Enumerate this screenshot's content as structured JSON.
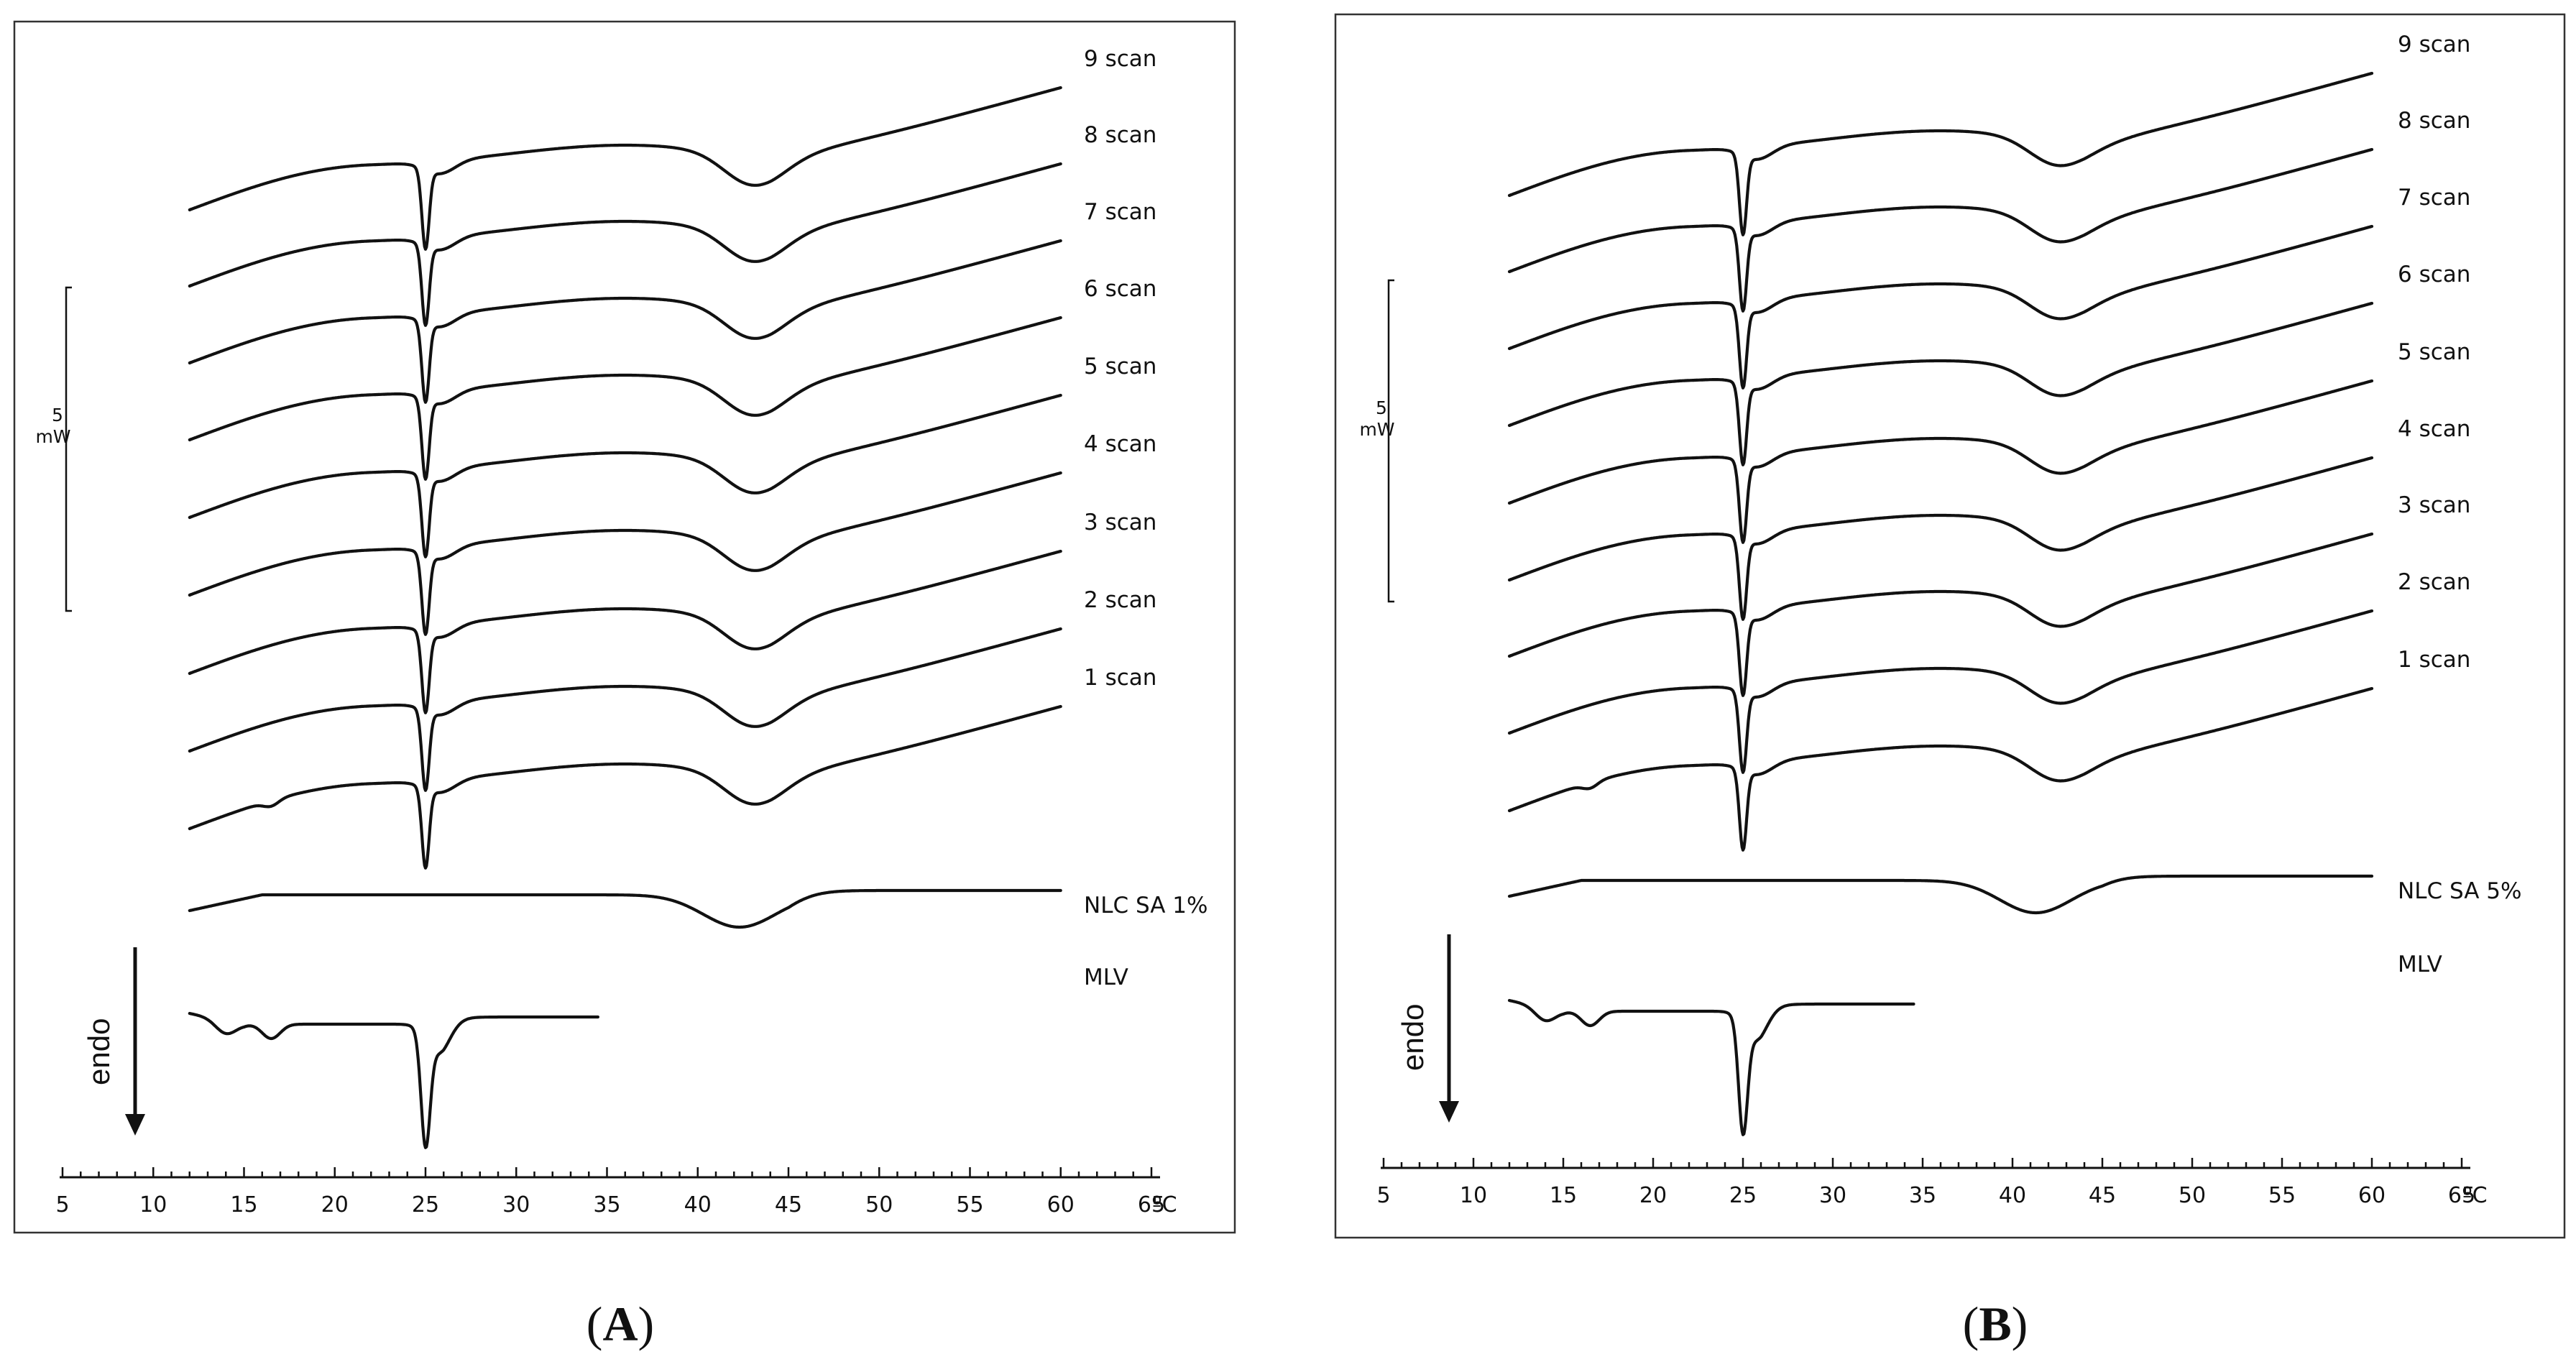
{
  "chart_data": [
    {
      "type": "line",
      "panel_label": "A",
      "x_unit": "ºC",
      "xlim": [
        5,
        65
      ],
      "x_ticks": [
        5,
        10,
        15,
        20,
        25,
        30,
        35,
        40,
        45,
        50,
        55,
        60,
        65
      ],
      "scale_bar": {
        "value": "5",
        "unit": "mW"
      },
      "direction_label": "endo",
      "series": [
        {
          "name": "9 scan",
          "peaks": [
            {
              "x": 25.0,
              "depth": 1.1
            },
            {
              "x": 43.0,
              "depth": 0.7
            }
          ],
          "x_start": 12,
          "x_end": 60
        },
        {
          "name": "8 scan",
          "peaks": [
            {
              "x": 25.0,
              "depth": 1.1
            },
            {
              "x": 43.0,
              "depth": 0.7
            }
          ],
          "x_start": 12,
          "x_end": 60
        },
        {
          "name": "7 scan",
          "peaks": [
            {
              "x": 25.0,
              "depth": 1.1
            },
            {
              "x": 43.0,
              "depth": 0.7
            }
          ],
          "x_start": 12,
          "x_end": 60
        },
        {
          "name": "6 scan",
          "peaks": [
            {
              "x": 25.0,
              "depth": 1.1
            },
            {
              "x": 43.0,
              "depth": 0.7
            }
          ],
          "x_start": 12,
          "x_end": 60
        },
        {
          "name": "5 scan",
          "peaks": [
            {
              "x": 25.0,
              "depth": 1.1
            },
            {
              "x": 43.0,
              "depth": 0.7
            }
          ],
          "x_start": 12,
          "x_end": 60
        },
        {
          "name": "4 scan",
          "peaks": [
            {
              "x": 25.0,
              "depth": 1.1
            },
            {
              "x": 43.0,
              "depth": 0.7
            }
          ],
          "x_start": 12,
          "x_end": 60
        },
        {
          "name": "3 scan",
          "peaks": [
            {
              "x": 25.0,
              "depth": 1.1
            },
            {
              "x": 43.0,
              "depth": 0.7
            }
          ],
          "x_start": 12,
          "x_end": 60
        },
        {
          "name": "2 scan",
          "peaks": [
            {
              "x": 25.0,
              "depth": 1.1
            },
            {
              "x": 43.0,
              "depth": 0.7
            }
          ],
          "x_start": 12,
          "x_end": 60
        },
        {
          "name": "1 scan",
          "peaks": [
            {
              "x": 25.0,
              "depth": 1.1
            },
            {
              "x": 43.0,
              "depth": 0.7
            }
          ],
          "x_start": 12,
          "x_end": 60
        },
        {
          "name": "NLC SA 1%",
          "peaks": [
            {
              "x": 43.5,
              "depth": 0.4
            }
          ],
          "x_start": 12,
          "x_end": 60
        },
        {
          "name": "MLV",
          "peaks": [
            {
              "x": 16.5,
              "depth": 0.15
            },
            {
              "x": 25.0,
              "depth": 1.2
            }
          ],
          "x_start": 12,
          "x_end": 34.5
        }
      ]
    },
    {
      "type": "line",
      "panel_label": "B",
      "x_unit": "ºC",
      "xlim": [
        5,
        65
      ],
      "x_ticks": [
        5,
        10,
        15,
        20,
        25,
        30,
        35,
        40,
        45,
        50,
        55,
        60,
        65
      ],
      "scale_bar": {
        "value": "5",
        "unit": "mW"
      },
      "direction_label": "endo",
      "series": [
        {
          "name": "9 scan",
          "peaks": [
            {
              "x": 25.0,
              "depth": 1.1
            },
            {
              "x": 42.5,
              "depth": 0.6
            }
          ],
          "x_start": 12,
          "x_end": 60
        },
        {
          "name": "8 scan",
          "peaks": [
            {
              "x": 25.0,
              "depth": 1.1
            },
            {
              "x": 42.5,
              "depth": 0.6
            }
          ],
          "x_start": 12,
          "x_end": 60
        },
        {
          "name": "7 scan",
          "peaks": [
            {
              "x": 25.0,
              "depth": 1.1
            },
            {
              "x": 42.5,
              "depth": 0.6
            }
          ],
          "x_start": 12,
          "x_end": 60
        },
        {
          "name": "6 scan",
          "peaks": [
            {
              "x": 25.0,
              "depth": 1.1
            },
            {
              "x": 42.5,
              "depth": 0.6
            }
          ],
          "x_start": 12,
          "x_end": 60
        },
        {
          "name": "5 scan",
          "peaks": [
            {
              "x": 25.0,
              "depth": 1.1
            },
            {
              "x": 42.5,
              "depth": 0.6
            }
          ],
          "x_start": 12,
          "x_end": 60
        },
        {
          "name": "4 scan",
          "peaks": [
            {
              "x": 25.0,
              "depth": 1.1
            },
            {
              "x": 42.5,
              "depth": 0.6
            }
          ],
          "x_start": 12,
          "x_end": 60
        },
        {
          "name": "3 scan",
          "peaks": [
            {
              "x": 25.0,
              "depth": 1.1
            },
            {
              "x": 42.5,
              "depth": 0.6
            }
          ],
          "x_start": 12,
          "x_end": 60
        },
        {
          "name": "2 scan",
          "peaks": [
            {
              "x": 25.0,
              "depth": 1.1
            },
            {
              "x": 42.5,
              "depth": 0.6
            }
          ],
          "x_start": 12,
          "x_end": 60
        },
        {
          "name": "1 scan",
          "peaks": [
            {
              "x": 25.0,
              "depth": 1.1
            },
            {
              "x": 42.5,
              "depth": 0.6
            }
          ],
          "x_start": 12,
          "x_end": 60
        },
        {
          "name": "NLC SA 5%",
          "peaks": [
            {
              "x": 42.5,
              "depth": 0.4
            }
          ],
          "x_start": 12,
          "x_end": 60
        },
        {
          "name": "MLV",
          "peaks": [
            {
              "x": 16.5,
              "depth": 0.15
            },
            {
              "x": 25.0,
              "depth": 1.2
            }
          ],
          "x_start": 12,
          "x_end": 34.5
        }
      ]
    }
  ]
}
